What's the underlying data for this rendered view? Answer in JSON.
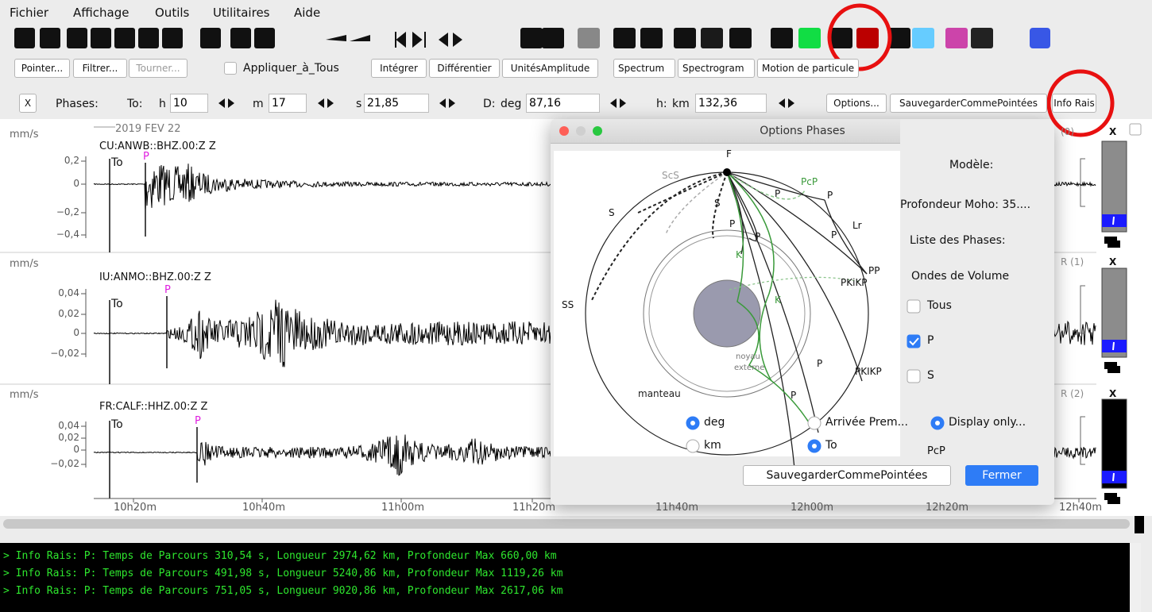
{
  "menu": [
    "Fichier",
    "Affichage",
    "Outils",
    "Utilitaires",
    "Aide"
  ],
  "toolbar": {
    "buttons": [
      "Pointer...",
      "Filtrer...",
      "Tourner..."
    ],
    "apply_all": "Appliquer_à_Tous",
    "tools": [
      "Intégrer",
      "Différentier",
      "UnitésAmplitude"
    ],
    "spectra": [
      "Spectrum",
      "Spectrogram",
      "Motion de particule"
    ]
  },
  "phase_bar": {
    "close": "X",
    "label": "Phases:",
    "to_label": "To:",
    "h_unit": "h",
    "h_value": "10",
    "m_unit": "m",
    "m_value": "17",
    "s_unit": "s",
    "s_value": "21,85",
    "d_label": "D:",
    "d_unit": "deg",
    "d_value": "87,16",
    "depth_label": "h:",
    "depth_unit": "km",
    "depth_value": "132,36",
    "buttons": [
      "Options...",
      "SauvegarderCommePointées",
      "Info Rais"
    ]
  },
  "date": "2019 FEV 22",
  "traces": [
    {
      "unit": "mm/s",
      "station": "CU:ANWB::BHZ.00:Z Z",
      "yticks": [
        "0,2",
        "0",
        "−0,2",
        "−0,4"
      ],
      "origin": "To",
      "phase": "P",
      "index": "(0)"
    },
    {
      "unit": "mm/s",
      "station": "IU:ANMO::BHZ.00:Z Z",
      "yticks": [
        "0,04",
        "0,02",
        "0",
        "−0,02"
      ],
      "origin": "To",
      "phase": "P",
      "index": "R (1)"
    },
    {
      "unit": "mm/s",
      "station": "FR:CALF::HHZ.00:Z Z",
      "yticks": [
        "0,04",
        "0,02",
        "0",
        "−0,02"
      ],
      "origin": "To",
      "phase": "P",
      "index": "R (2)"
    }
  ],
  "side_close": "X",
  "time_axis": [
    "10h20m",
    "10h40m",
    "11h00m",
    "11h20m",
    "11h40m",
    "12h00m",
    "12h20m",
    "12h40m"
  ],
  "dialog": {
    "title": "Options Phases",
    "diagram_labels": [
      "F",
      "ScS",
      "PcP",
      "S",
      "S",
      "P",
      "P",
      "P",
      "P",
      "Lr",
      "P",
      "PP",
      "SS",
      "K",
      "K",
      "PKiKP",
      "PKIKP",
      "noyau",
      "externe",
      "P",
      "P",
      "manteau"
    ],
    "model": "Modèle:",
    "moho": "Profondeur Moho: 35....",
    "phase_list": "Liste des Phases:",
    "body_waves": "Ondes de Volume",
    "checks": [
      {
        "label": "Tous",
        "checked": false
      },
      {
        "label": "P",
        "checked": true
      },
      {
        "label": "S",
        "checked": false
      }
    ],
    "partial_phase": "PcP",
    "radios": [
      {
        "label": "deg",
        "selected": true
      },
      {
        "label": "km",
        "selected": false
      },
      {
        "label": "Arrivée Prem...",
        "selected": false
      },
      {
        "label": "To",
        "selected": true
      },
      {
        "label": "Display only...",
        "selected": true
      }
    ],
    "buttons": [
      "SauvegarderCommePointées",
      "Fermer"
    ]
  },
  "console": [
    "> Info Rais: P: Temps de Parcours 310,54 s, Longueur 2974,62 km, Profondeur Max 660,00 km",
    "> Info Rais: P: Temps de Parcours 491,98 s, Longueur 5240,86 km, Profondeur Max 1119,26 km",
    "> Info Rais: P: Temps de Parcours 751,05 s, Longueur 9020,86 km, Profondeur Max 2617,06 km"
  ]
}
